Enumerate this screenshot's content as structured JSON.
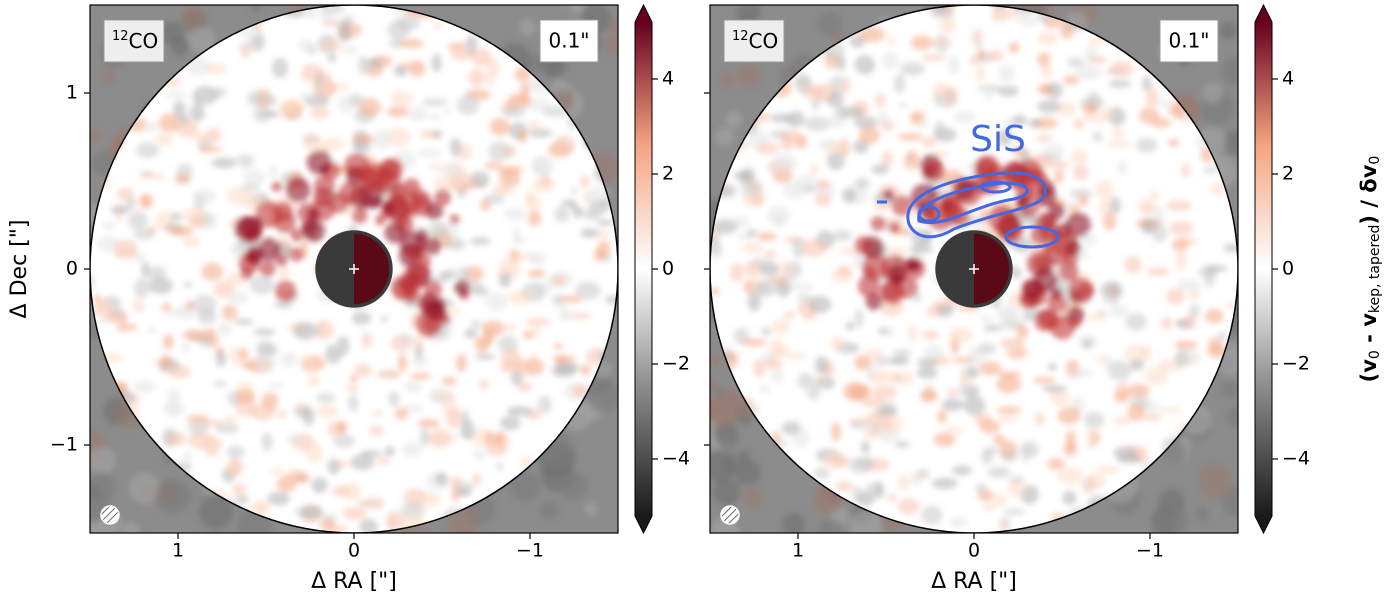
{
  "chart_data": [
    {
      "type": "image",
      "xlabel": "Δ RA [\"]",
      "ylabel": "Δ Dec [\"]",
      "xlim": [
        1.5,
        -1.5
      ],
      "ylim": [
        -1.5,
        1.5
      ],
      "xticks": [
        1,
        0,
        {
          "value": -1,
          "label": "−1"
        }
      ],
      "yticks": [
        {
          "value": -1,
          "label": "−1"
        },
        0,
        1
      ],
      "line_label": {
        "sup": "12",
        "text": "CO"
      },
      "beam_label": "0.1\"",
      "colorbar": {
        "lim": [
          -5.2,
          5.2
        ],
        "ticks": [
          {
            "value": -4,
            "label": "−4"
          },
          {
            "value": -2,
            "label": "−2"
          },
          0,
          2,
          4
        ]
      }
    },
    {
      "type": "image",
      "xlabel": "Δ RA [\"]",
      "xlim": [
        1.5,
        -1.5
      ],
      "ylim": [
        -1.5,
        1.5
      ],
      "xticks": [
        1,
        0,
        {
          "value": -1,
          "label": "−1"
        }
      ],
      "yticks": [
        -1,
        0,
        1
      ],
      "line_label": {
        "sup": "12",
        "text": "CO"
      },
      "beam_label": "0.1\"",
      "contour_label": "SiS",
      "contour_color": "#4169e1",
      "colorbar": {
        "lim": [
          -5.2,
          5.2
        ],
        "ticks": [
          {
            "value": -4,
            "label": "−4"
          },
          {
            "value": -2,
            "label": "−2"
          },
          0,
          2,
          4
        ],
        "label_parts": [
          "(v",
          "0",
          " - v",
          "kep, tapered",
          ") / δv",
          "0"
        ]
      }
    }
  ]
}
